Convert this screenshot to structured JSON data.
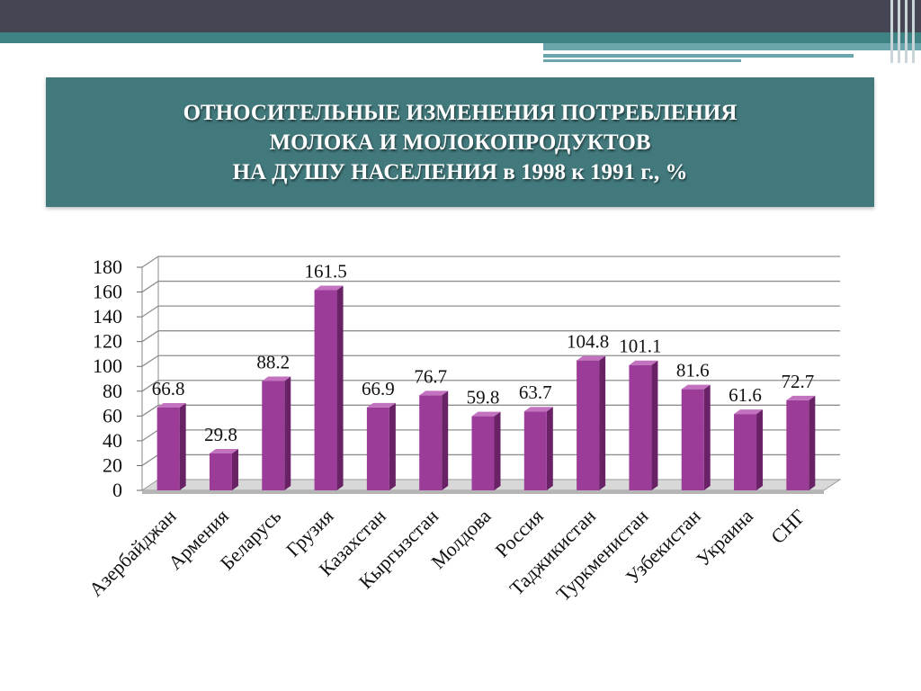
{
  "title": {
    "line1": "ОТНОСИТЕЛЬНЫЕ ИЗМЕНЕНИЯ ПОТРЕБЛЕНИЯ",
    "line2": "МОЛОКА И МОЛОКОПРОДУКТОВ",
    "line3": "НА ДУШУ НАСЕЛЕНИЯ в 1998 к 1991 г., %"
  },
  "colors": {
    "bar_front": "#9b3c98",
    "bar_side": "#6a2267",
    "bar_top": "#c272bf",
    "header_band": "#454554",
    "accent_teal": "#3f8283",
    "title_box": "#42797c"
  },
  "chart_data": {
    "type": "bar",
    "title": "ОТНОСИТЕЛЬНЫЕ ИЗМЕНЕНИЯ ПОТРЕБЛЕНИЯ МОЛОКА И МОЛОКОПРОДУКТОВ НА ДУШУ НАСЕЛЕНИЯ в 1998 к 1991 г., %",
    "categories": [
      "Азербайджан",
      "Армения",
      "Беларусь",
      "Грузия",
      "Казахстан",
      "Кыргызстан",
      "Молдова",
      "Россия",
      "Таджикистан",
      "Туркменистан",
      "Узбекистан",
      "Украина",
      "СНГ"
    ],
    "values": [
      66.8,
      29.8,
      88.2,
      161.5,
      66.9,
      76.7,
      59.8,
      63.7,
      104.8,
      101.1,
      81.6,
      61.6,
      72.7
    ],
    "value_labels": [
      "66.8",
      "29.8",
      "88.2",
      "161.5",
      "66.9",
      "76.7",
      "59.8",
      "63.7",
      "104.8",
      "101.1",
      "81.6",
      "61.6",
      "72.7"
    ],
    "yticks": [
      "0",
      "20",
      "40",
      "60",
      "80",
      "100",
      "120",
      "140",
      "160",
      "180"
    ],
    "ylim": [
      0,
      180
    ],
    "grid": true,
    "style": "3d"
  }
}
